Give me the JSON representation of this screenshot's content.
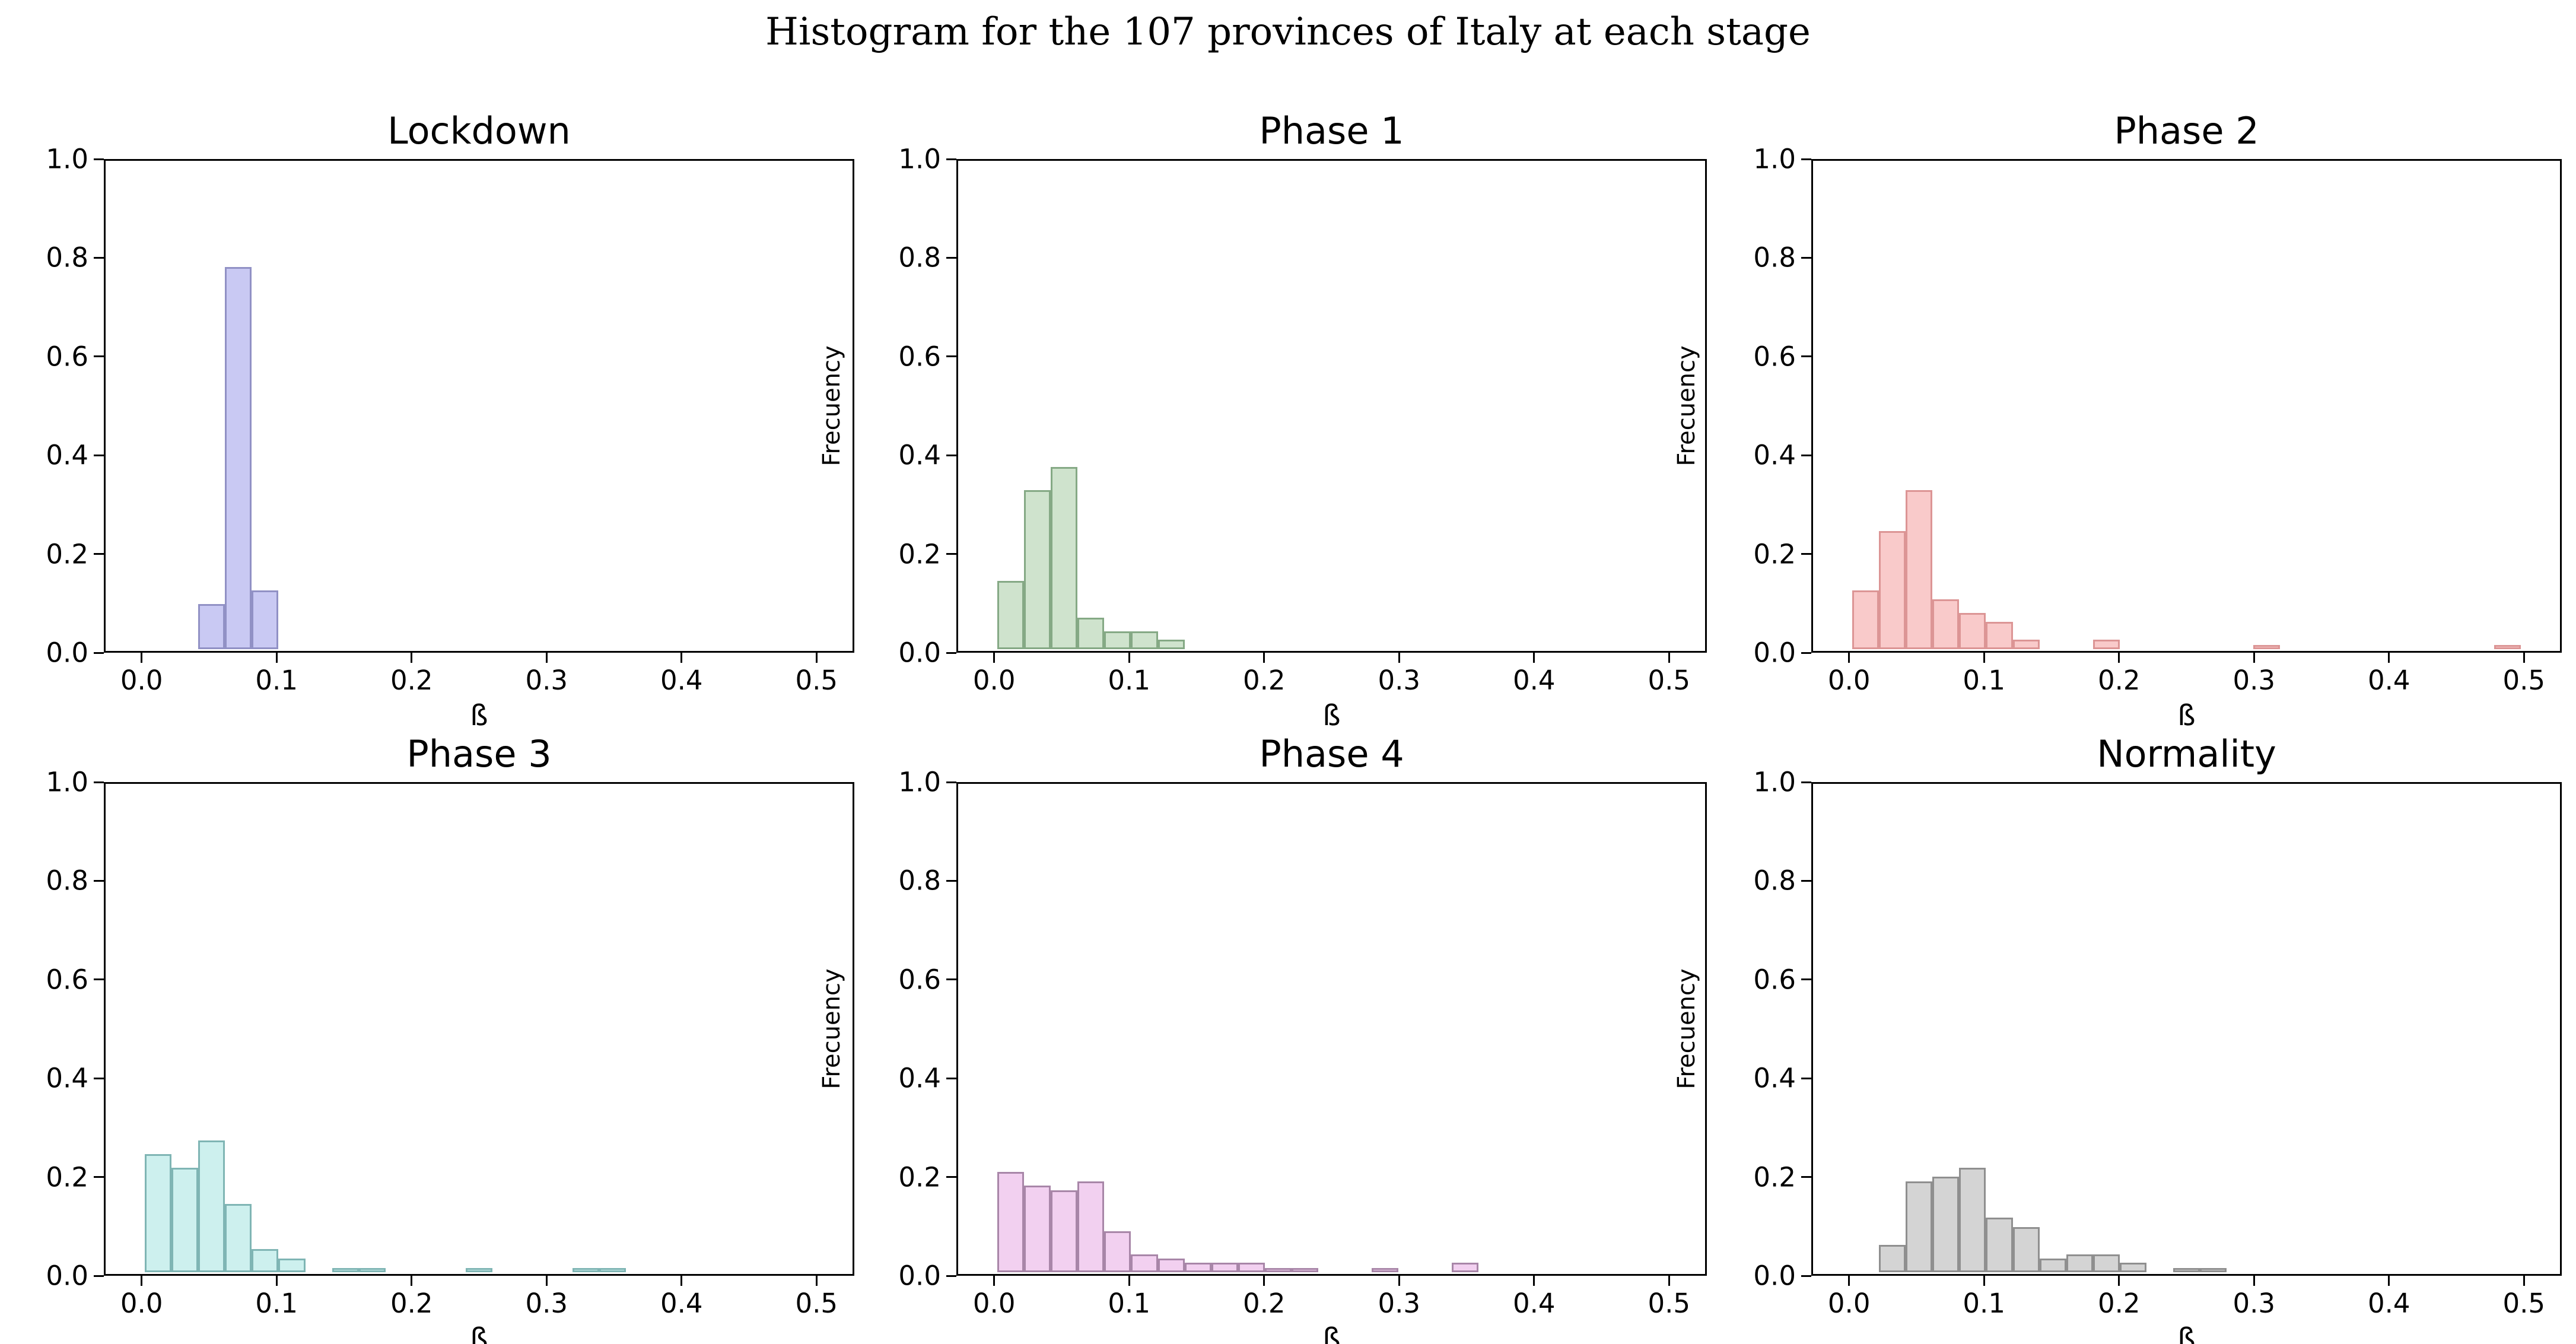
{
  "figure": {
    "title": "Histogram for the 107 provinces of Italy at each stage",
    "background": "#ffffff",
    "text_color": "#000000"
  },
  "chart_data": {
    "type": "bar",
    "subtype": "histogram-grid-2x3",
    "suptitle": "Histogram for the 107 provinces of Italy at each stage",
    "xlabel": "ß",
    "ylabel": "Frecuency",
    "xlim": [
      -0.028,
      0.528
    ],
    "ylim": [
      0,
      1
    ],
    "grid": false,
    "legend": "none",
    "bin_width": 0.02,
    "xticks": [
      {
        "v": 0.0,
        "label": "0.0"
      },
      {
        "v": 0.1,
        "label": "0.1"
      },
      {
        "v": 0.2,
        "label": "0.2"
      },
      {
        "v": 0.3,
        "label": "0.3"
      },
      {
        "v": 0.4,
        "label": "0.4"
      },
      {
        "v": 0.5,
        "label": "0.5"
      }
    ],
    "yticks": [
      {
        "v": 0.0,
        "label": "0.0"
      },
      {
        "v": 0.2,
        "label": "0.2"
      },
      {
        "v": 0.4,
        "label": "0.4"
      },
      {
        "v": 0.6,
        "label": "0.6"
      },
      {
        "v": 0.8,
        "label": "0.8"
      },
      {
        "v": 1.0,
        "label": "1.0"
      }
    ],
    "subplots": [
      {
        "title": "Lockdown",
        "fill": "#c9c9f3",
        "edge": "#9191c5",
        "bars": [
          [
            0.04,
            0.093
          ],
          [
            0.06,
            0.785
          ],
          [
            0.08,
            0.121
          ]
        ]
      },
      {
        "title": "Phase 1",
        "fill": "#cfe3cd",
        "edge": "#85a985",
        "bars": [
          [
            0.0,
            0.14
          ],
          [
            0.02,
            0.327
          ],
          [
            0.04,
            0.374
          ],
          [
            0.06,
            0.065
          ],
          [
            0.08,
            0.037
          ],
          [
            0.1,
            0.037
          ],
          [
            0.12,
            0.019
          ]
        ]
      },
      {
        "title": "Phase 2",
        "fill": "#f9caca",
        "edge": "#dc9595",
        "bars": [
          [
            0.0,
            0.121
          ],
          [
            0.02,
            0.243
          ],
          [
            0.04,
            0.327
          ],
          [
            0.06,
            0.103
          ],
          [
            0.08,
            0.075
          ],
          [
            0.1,
            0.056
          ],
          [
            0.12,
            0.019
          ],
          [
            0.18,
            0.019
          ],
          [
            0.3,
            0.009
          ],
          [
            0.48,
            0.009
          ]
        ]
      },
      {
        "title": "Phase 3",
        "fill": "#cdf0ee",
        "edge": "#7fb5b4",
        "bars": [
          [
            0.0,
            0.243
          ],
          [
            0.02,
            0.215
          ],
          [
            0.04,
            0.271
          ],
          [
            0.06,
            0.14
          ],
          [
            0.08,
            0.047
          ],
          [
            0.1,
            0.028
          ],
          [
            0.14,
            0.009
          ],
          [
            0.16,
            0.009
          ],
          [
            0.24,
            0.009
          ],
          [
            0.32,
            0.009
          ],
          [
            0.34,
            0.009
          ]
        ]
      },
      {
        "title": "Phase 4",
        "fill": "#f2d0f0",
        "edge": "#a886a8",
        "bars": [
          [
            0.0,
            0.206
          ],
          [
            0.02,
            0.178
          ],
          [
            0.04,
            0.168
          ],
          [
            0.06,
            0.187
          ],
          [
            0.08,
            0.084
          ],
          [
            0.1,
            0.037
          ],
          [
            0.12,
            0.028
          ],
          [
            0.14,
            0.019
          ],
          [
            0.16,
            0.019
          ],
          [
            0.18,
            0.019
          ],
          [
            0.2,
            0.009
          ],
          [
            0.22,
            0.009
          ],
          [
            0.28,
            0.009
          ],
          [
            0.34,
            0.019
          ]
        ]
      },
      {
        "title": "Normality",
        "fill": "#d4d4d4",
        "edge": "#8f8f8f",
        "bars": [
          [
            0.02,
            0.056
          ],
          [
            0.04,
            0.187
          ],
          [
            0.06,
            0.196
          ],
          [
            0.08,
            0.215
          ],
          [
            0.1,
            0.112
          ],
          [
            0.12,
            0.093
          ],
          [
            0.14,
            0.028
          ],
          [
            0.16,
            0.037
          ],
          [
            0.18,
            0.037
          ],
          [
            0.2,
            0.019
          ],
          [
            0.24,
            0.009
          ],
          [
            0.26,
            0.009
          ]
        ]
      }
    ]
  }
}
